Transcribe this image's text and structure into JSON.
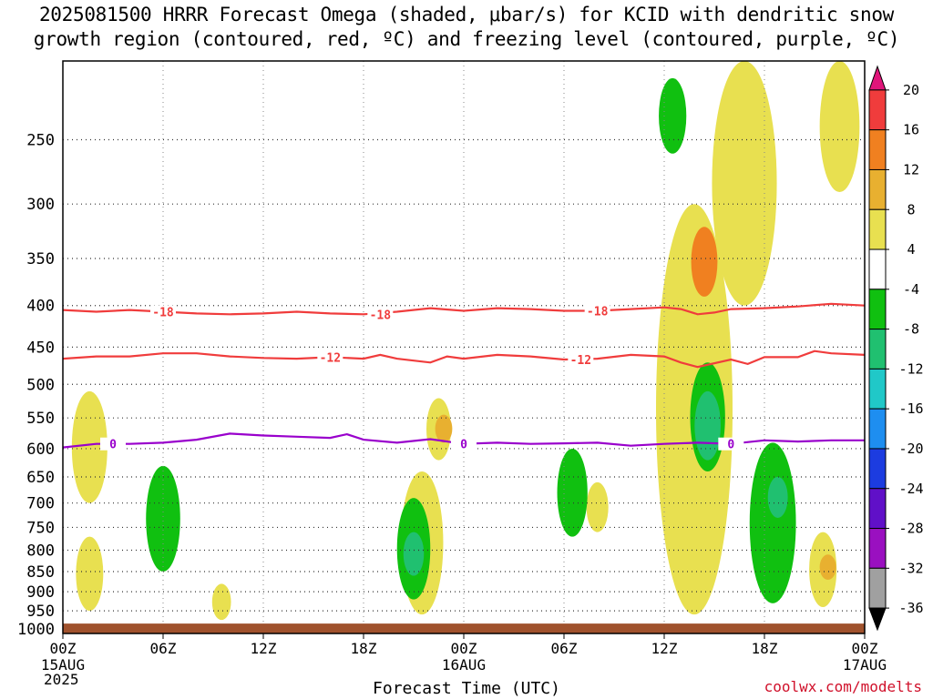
{
  "header": {
    "title_line1": "2025081500 HRRR Forecast Omega (shaded, μbar/s) for KCID with dendritic snow",
    "title_line2": "growth region (contoured, red, ºC) and freezing level (contoured, purple, ºC)"
  },
  "footer": {
    "xlabel": "Forecast Time (UTC)",
    "start_date_line1": "15AUG",
    "start_date_line2": "2025",
    "credit": "coolwx.com/modelts"
  },
  "chart_data": {
    "type": "heatmap",
    "title": "2025081500 HRRR Forecast Omega (shaded, μbar/s) for KCID with dendritic snow growth region (contoured, red, ºC) and freezing level (contoured, purple, ºC)",
    "xlabel": "Forecast Time (UTC)",
    "ylabel": "",
    "x_ticks": [
      {
        "hour": 0,
        "label": "00Z",
        "sublabel": "15AUG"
      },
      {
        "hour": 6,
        "label": "06Z",
        "sublabel": ""
      },
      {
        "hour": 12,
        "label": "12Z",
        "sublabel": ""
      },
      {
        "hour": 18,
        "label": "18Z",
        "sublabel": ""
      },
      {
        "hour": 24,
        "label": "00Z",
        "sublabel": "16AUG"
      },
      {
        "hour": 30,
        "label": "06Z",
        "sublabel": ""
      },
      {
        "hour": 36,
        "label": "12Z",
        "sublabel": ""
      },
      {
        "hour": 42,
        "label": "18Z",
        "sublabel": ""
      },
      {
        "hour": 48,
        "label": "00Z",
        "sublabel": "17AUG"
      }
    ],
    "xlim": [
      0,
      48
    ],
    "y_axis": {
      "scale": "log",
      "inverted": true,
      "ticks": [
        250,
        300,
        350,
        400,
        450,
        500,
        550,
        600,
        650,
        700,
        750,
        800,
        850,
        900,
        950,
        1000
      ],
      "ylim": [
        1013,
        200
      ]
    },
    "grid": true,
    "ground_level_hpa": 985,
    "colorbar": {
      "levels": [
        -36,
        -32,
        -28,
        -24,
        -20,
        -16,
        -12,
        -8,
        -4,
        4,
        8,
        12,
        16,
        20
      ],
      "colors": [
        "#000000",
        "#a0a0a0",
        "#9a10c0",
        "#6010c8",
        "#1c3ce0",
        "#1e8ef0",
        "#20c8c8",
        "#20c070",
        "#10c010",
        "#ffffff",
        "#e8e050",
        "#e8b030",
        "#f08020",
        "#f03c3c",
        "#e0157a"
      ]
    },
    "contours": [
      {
        "name": "-18",
        "color": "#f03c3c",
        "labels_at_hours": [
          6,
          19,
          32
        ],
        "points": [
          [
            0,
            405
          ],
          [
            2,
            407
          ],
          [
            4,
            405
          ],
          [
            6,
            407
          ],
          [
            8,
            409
          ],
          [
            10,
            410
          ],
          [
            12,
            409
          ],
          [
            14,
            407
          ],
          [
            16,
            409
          ],
          [
            18,
            410
          ],
          [
            20,
            407
          ],
          [
            22,
            403
          ],
          [
            24,
            406
          ],
          [
            26,
            403
          ],
          [
            28,
            404
          ],
          [
            30,
            406
          ],
          [
            32,
            406
          ],
          [
            34,
            404
          ],
          [
            36,
            402
          ],
          [
            37,
            404
          ],
          [
            38,
            410
          ],
          [
            39,
            408
          ],
          [
            40,
            404
          ],
          [
            42,
            403
          ],
          [
            44,
            401
          ],
          [
            46,
            398
          ],
          [
            48,
            400
          ]
        ]
      },
      {
        "name": "-12",
        "color": "#f03c3c",
        "labels_at_hours": [
          16,
          31
        ],
        "points": [
          [
            0,
            465
          ],
          [
            2,
            462
          ],
          [
            4,
            462
          ],
          [
            6,
            458
          ],
          [
            8,
            458
          ],
          [
            10,
            462
          ],
          [
            12,
            464
          ],
          [
            14,
            465
          ],
          [
            16,
            463
          ],
          [
            18,
            465
          ],
          [
            19,
            460
          ],
          [
            20,
            465
          ],
          [
            22,
            470
          ],
          [
            23,
            462
          ],
          [
            24,
            465
          ],
          [
            26,
            460
          ],
          [
            28,
            462
          ],
          [
            30,
            466
          ],
          [
            32,
            465
          ],
          [
            34,
            460
          ],
          [
            36,
            462
          ],
          [
            37,
            470
          ],
          [
            38,
            476
          ],
          [
            40,
            466
          ],
          [
            41,
            472
          ],
          [
            42,
            463
          ],
          [
            44,
            463
          ],
          [
            45,
            455
          ],
          [
            46,
            458
          ],
          [
            48,
            460
          ]
        ]
      },
      {
        "name": "0",
        "color": "#9900cc",
        "labels_at_hours": [
          3,
          24,
          40
        ],
        "points": [
          [
            0,
            598
          ],
          [
            2,
            592
          ],
          [
            4,
            592
          ],
          [
            6,
            590
          ],
          [
            8,
            585
          ],
          [
            10,
            575
          ],
          [
            12,
            578
          ],
          [
            14,
            580
          ],
          [
            16,
            582
          ],
          [
            17,
            576
          ],
          [
            18,
            585
          ],
          [
            20,
            590
          ],
          [
            22,
            584
          ],
          [
            24,
            592
          ],
          [
            26,
            590
          ],
          [
            28,
            592
          ],
          [
            30,
            591
          ],
          [
            32,
            590
          ],
          [
            34,
            595
          ],
          [
            36,
            592
          ],
          [
            38,
            590
          ],
          [
            40,
            592
          ],
          [
            42,
            586
          ],
          [
            44,
            588
          ],
          [
            46,
            586
          ],
          [
            48,
            586
          ]
        ]
      }
    ],
    "omega_regions": [
      {
        "value": 6,
        "hour_center": 1.6,
        "hpa_top": 510,
        "hpa_bottom": 700
      },
      {
        "value": 6,
        "hour_center": 1.6,
        "hpa_top": 770,
        "hpa_bottom": 950
      },
      {
        "value": 6,
        "hour_center": 9.5,
        "hpa_top": 880,
        "hpa_bottom": 975
      },
      {
        "value": -6,
        "hour_center": 6.0,
        "hpa_top": 630,
        "hpa_bottom": 850
      },
      {
        "value": 6,
        "hour_center": 22.5,
        "hpa_top": 520,
        "hpa_bottom": 620
      },
      {
        "value": 10,
        "hour_center": 22.8,
        "hpa_top": 545,
        "hpa_bottom": 590
      },
      {
        "value": 6,
        "hour_center": 21.5,
        "hpa_top": 640,
        "hpa_bottom": 960
      },
      {
        "value": -6,
        "hour_center": 21.0,
        "hpa_top": 690,
        "hpa_bottom": 920
      },
      {
        "value": -10,
        "hour_center": 21.0,
        "hpa_top": 760,
        "hpa_bottom": 860
      },
      {
        "value": 6,
        "hour_center": 32.0,
        "hpa_top": 660,
        "hpa_bottom": 760
      },
      {
        "value": -6,
        "hour_center": 30.5,
        "hpa_top": 600,
        "hpa_bottom": 770
      },
      {
        "value": -6,
        "hour_center": 36.5,
        "hpa_top": 210,
        "hpa_bottom": 260
      },
      {
        "value": 6,
        "hour_center": 37.8,
        "hpa_top": 300,
        "hpa_bottom": 960
      },
      {
        "value": 12,
        "hour_center": 38.4,
        "hpa_top": 320,
        "hpa_bottom": 390
      },
      {
        "value": -6,
        "hour_center": 38.6,
        "hpa_top": 470,
        "hpa_bottom": 640
      },
      {
        "value": -10,
        "hour_center": 38.6,
        "hpa_top": 510,
        "hpa_bottom": 620
      },
      {
        "value": 6,
        "hour_center": 40.8,
        "hpa_top": 200,
        "hpa_bottom": 400
      },
      {
        "value": -6,
        "hour_center": 42.5,
        "hpa_top": 590,
        "hpa_bottom": 930
      },
      {
        "value": -10,
        "hour_center": 42.8,
        "hpa_top": 650,
        "hpa_bottom": 730
      },
      {
        "value": 6,
        "hour_center": 45.5,
        "hpa_top": 760,
        "hpa_bottom": 940
      },
      {
        "value": 8,
        "hour_center": 45.8,
        "hpa_top": 810,
        "hpa_bottom": 870
      },
      {
        "value": 6,
        "hour_center": 46.5,
        "hpa_top": 200,
        "hpa_bottom": 290
      }
    ]
  }
}
